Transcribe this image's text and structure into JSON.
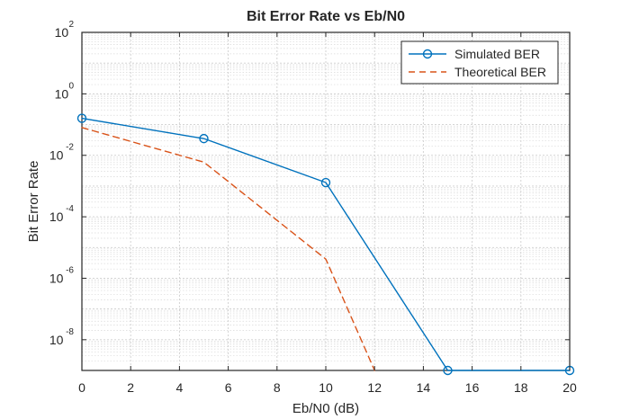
{
  "chart_data": {
    "type": "line",
    "title": "Bit Error Rate vs Eb/N0",
    "xlabel": "Eb/N0 (dB)",
    "ylabel": "Bit Error Rate",
    "xlim": [
      0,
      20
    ],
    "ylim": [
      1e-09,
      100
    ],
    "y_scale": "log",
    "x_ticks": [
      0,
      2,
      4,
      6,
      8,
      10,
      12,
      14,
      16,
      18,
      20
    ],
    "x_tick_labels": [
      "0",
      "2",
      "4",
      "6",
      "8",
      "10",
      "12",
      "14",
      "16",
      "18",
      "20"
    ],
    "y_ticks": [
      {
        "value": 100,
        "base": "10",
        "exp": "2"
      },
      {
        "value": 1,
        "base": "10",
        "exp": "0"
      },
      {
        "value": 0.01,
        "base": "10",
        "exp": "-2"
      },
      {
        "value": 0.0001,
        "base": "10",
        "exp": "-4"
      },
      {
        "value": 1e-06,
        "base": "10",
        "exp": "-6"
      },
      {
        "value": 1e-08,
        "base": "10",
        "exp": "-8"
      }
    ],
    "grid": true,
    "legend_position": "top-right",
    "series": [
      {
        "name": "Simulated BER",
        "color": "#0072BD",
        "line_style": "solid",
        "marker": "circle",
        "x": [
          0,
          5,
          10,
          15,
          20
        ],
        "y": [
          0.16,
          0.035,
          0.0013,
          1e-09,
          1e-09
        ]
      },
      {
        "name": "Theoretical BER",
        "color": "#D95319",
        "line_style": "dashed",
        "marker": "none",
        "x": [
          0,
          5,
          10,
          12
        ],
        "y": [
          0.08,
          0.006,
          4.2e-06,
          1e-09
        ]
      }
    ]
  }
}
